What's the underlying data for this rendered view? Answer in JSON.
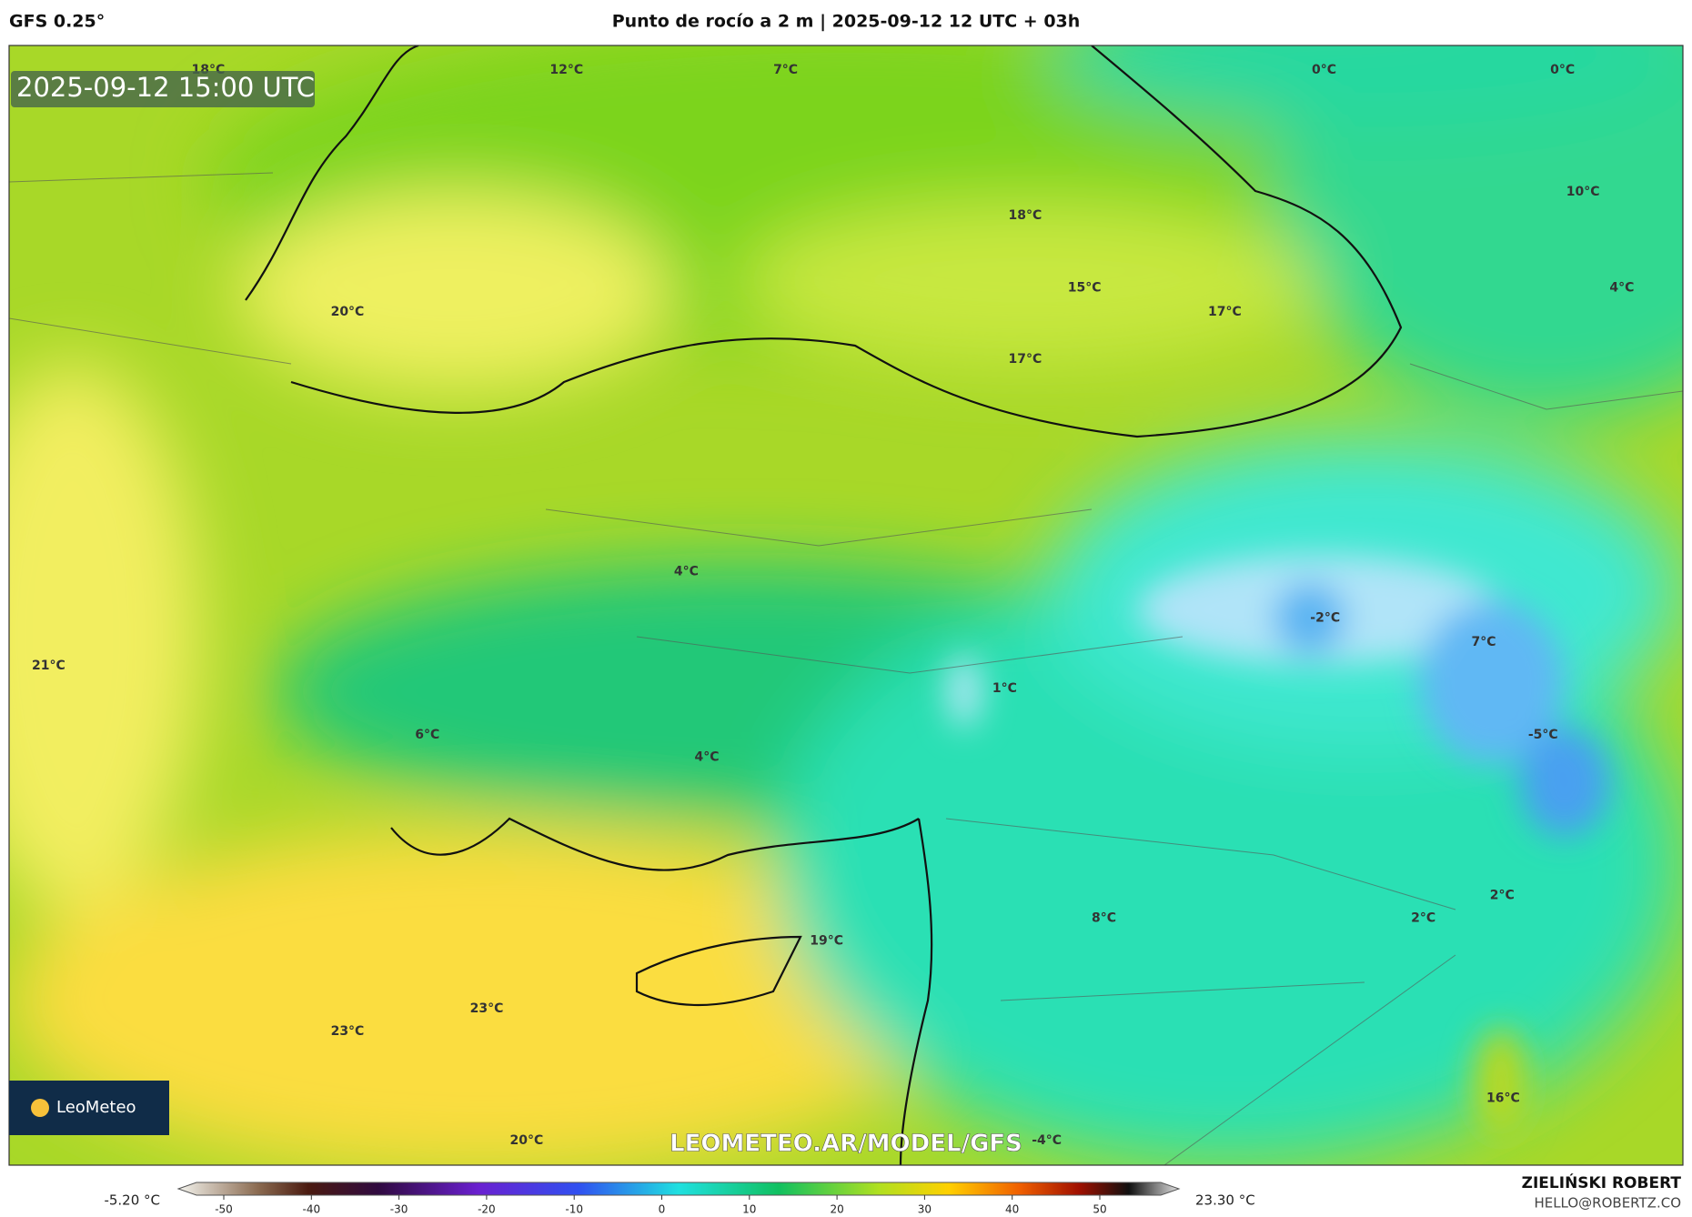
{
  "header": {
    "model": "GFS 0.25°",
    "title": "Punto de rocío a 2 m | 2025-09-12 12 UTC + 03h"
  },
  "map": {
    "valid_time": "2025-09-12 15:00 UTC",
    "labels": [
      "18°C",
      "12°C",
      "7°C",
      "0°C",
      "0°C",
      "10°C",
      "18°C",
      "15°C",
      "17°C",
      "4°C",
      "20°C",
      "17°C",
      "4°C",
      "-2°C",
      "7°C",
      "21°C",
      "1°C",
      "6°C",
      "-5°C",
      "4°C",
      "2°C",
      "2°C",
      "8°C",
      "19°C",
      "23°C",
      "23°C",
      "16°C",
      "20°C",
      "-4°C"
    ],
    "watermark": "LEOMETEO.AR/MODEL/GFS",
    "logo": "LeoMeteo"
  },
  "colorbar": {
    "min_label": "-5.20 °C",
    "max_label": "23.30 °C",
    "ticks": [
      -50,
      -40,
      -30,
      -20,
      -10,
      0,
      10,
      20,
      30,
      40,
      50
    ]
  },
  "footer": {
    "author": "ZIELIŃSKI ROBERT",
    "email": "HELLO@ROBERTZ.CO"
  }
}
